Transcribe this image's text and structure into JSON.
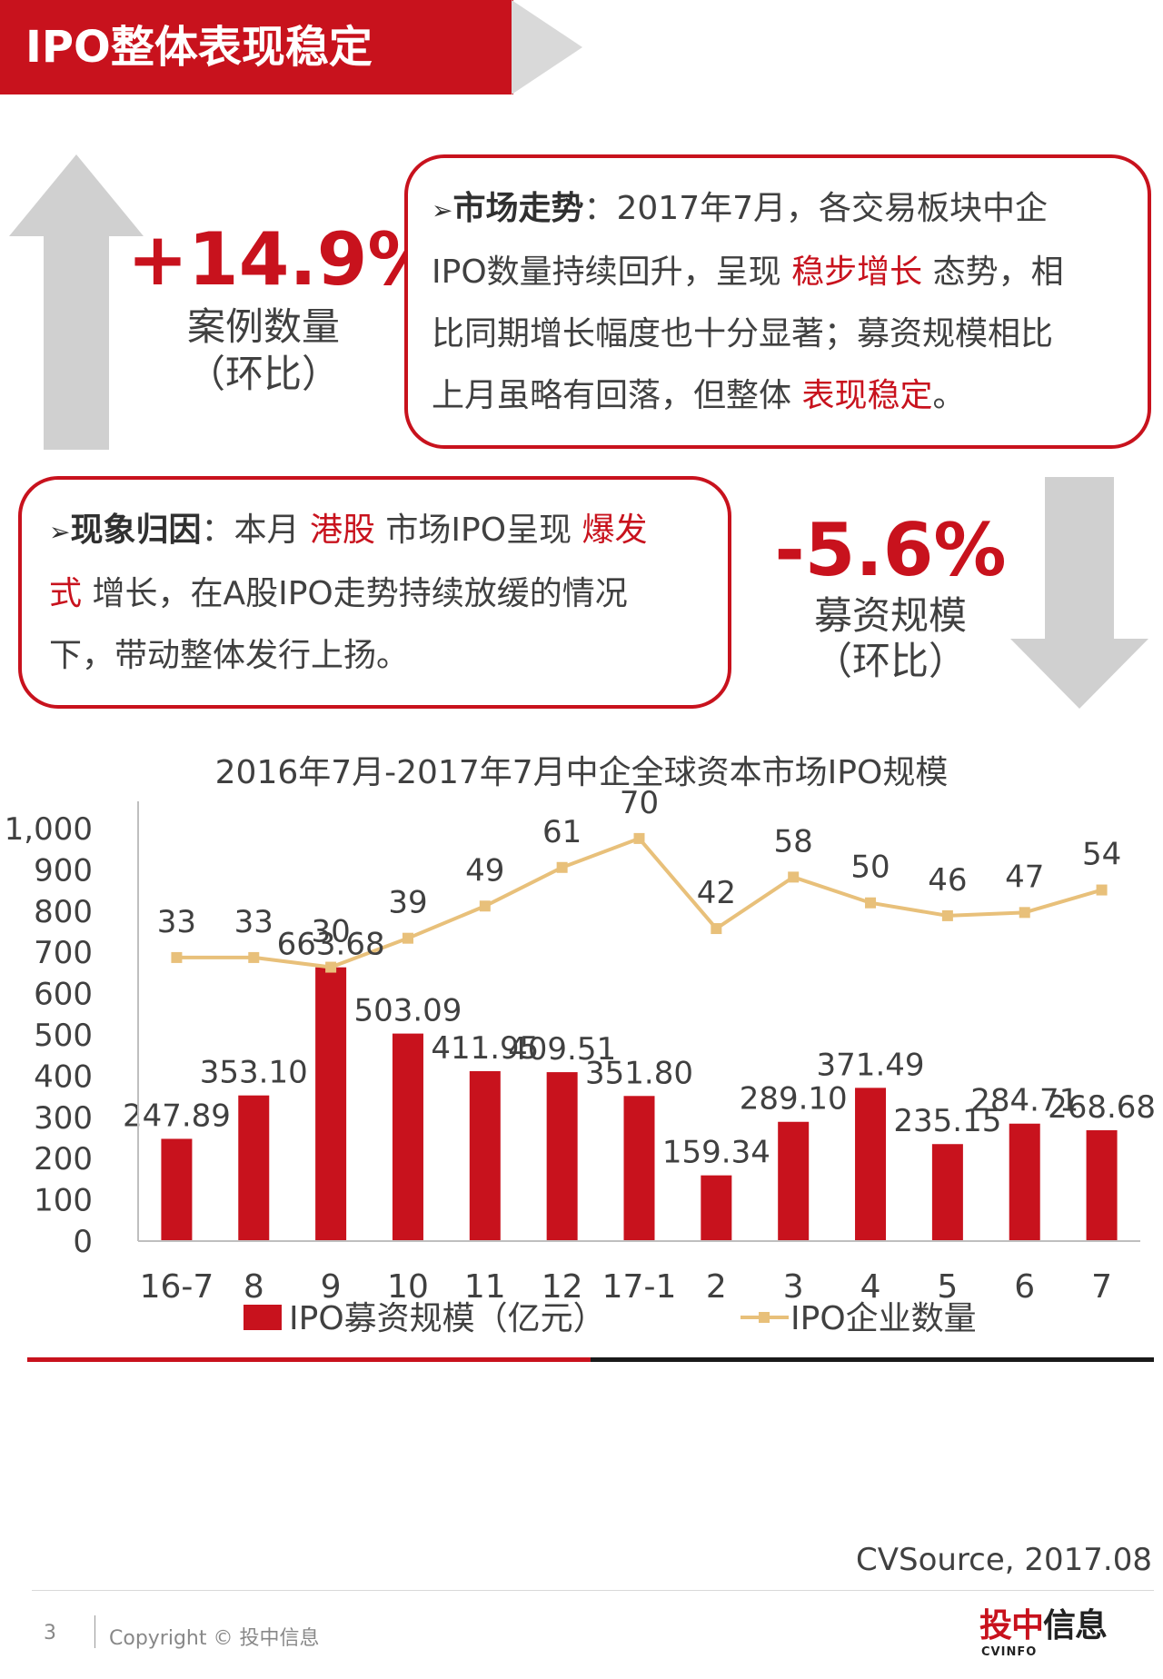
{
  "header": {
    "title": "IPO整体表现稳定"
  },
  "stats": {
    "cases": {
      "value": "+14.9%",
      "label": "案例数量",
      "sub": "（环比）"
    },
    "funds": {
      "value": "-5.6%",
      "label": "募资规模",
      "sub": "（环比）"
    }
  },
  "market_box": {
    "marker": "➢",
    "head": "市场走势",
    "line1_rest": "：2017年7月，各交易板块中企",
    "line2_pre": "IPO数量持续回升，呈现",
    "line2_hl": "稳步增长",
    "line2_post": "态势，相",
    "line3": "比同期增长幅度也十分显著；募资规模相比",
    "line4_pre": "上月虽略有回落，但整体",
    "line4_hl": "表现稳定",
    "line4_post": "。"
  },
  "cause_box": {
    "marker": "➢",
    "head": "现象归因",
    "line1_mid": "：本月",
    "line1_hl1": "港股",
    "line1_mid2": "市场IPO呈现",
    "line1_hl2": "爆发",
    "line2_hl": "式",
    "line2_post": "增长，在A股IPO走势持续放缓的情况",
    "line3": "下，带动整体发行上扬。"
  },
  "chart_data": {
    "type": "bar+line",
    "title": "2016年7月-2017年7月中企全球资本市场IPO规模",
    "categories": [
      "16-7",
      "8",
      "9",
      "10",
      "11",
      "12",
      "17-1",
      "2",
      "3",
      "4",
      "5",
      "6",
      "7"
    ],
    "y_ticks": [
      "0",
      "100",
      "200",
      "300",
      "400",
      "500",
      "600",
      "700",
      "800",
      "900",
      "1,000"
    ],
    "ylim": [
      0,
      1000
    ],
    "legend_position": "bottom",
    "series": [
      {
        "name": "IPO募资规模（亿元）",
        "type": "bar",
        "values": [
          247.89,
          353.1,
          663.68,
          503.09,
          411.95,
          409.51,
          351.8,
          159.34,
          289.1,
          371.49,
          235.15,
          284.71,
          268.68
        ],
        "labels": [
          "247.89",
          "353.10",
          "663.68",
          "503.09",
          "411.95",
          "409.51",
          "351.80",
          "159.34",
          "289.10",
          "371.49",
          "235.15",
          "284.71",
          "268.68"
        ]
      },
      {
        "name": "IPO企业数量",
        "type": "line",
        "values": [
          33,
          33,
          30,
          39,
          49,
          61,
          70,
          42,
          58,
          50,
          46,
          47,
          54
        ],
        "labels": [
          "33",
          "33",
          "30",
          "39",
          "49",
          "61",
          "70",
          "42",
          "58",
          "50",
          "46",
          "47",
          "54"
        ]
      }
    ]
  },
  "colors": {
    "accent": "#c8121d",
    "bar": "#c8121d",
    "line": "#e8c07a",
    "arrow": "#d0d0d0"
  },
  "footer": {
    "source": "CVSource, 2017.08",
    "page": "3",
    "copyright": "Copyright © 投中信息",
    "logo_cn_1": "投中",
    "logo_cn_2": "信息",
    "logo_en": "CVINFO"
  }
}
